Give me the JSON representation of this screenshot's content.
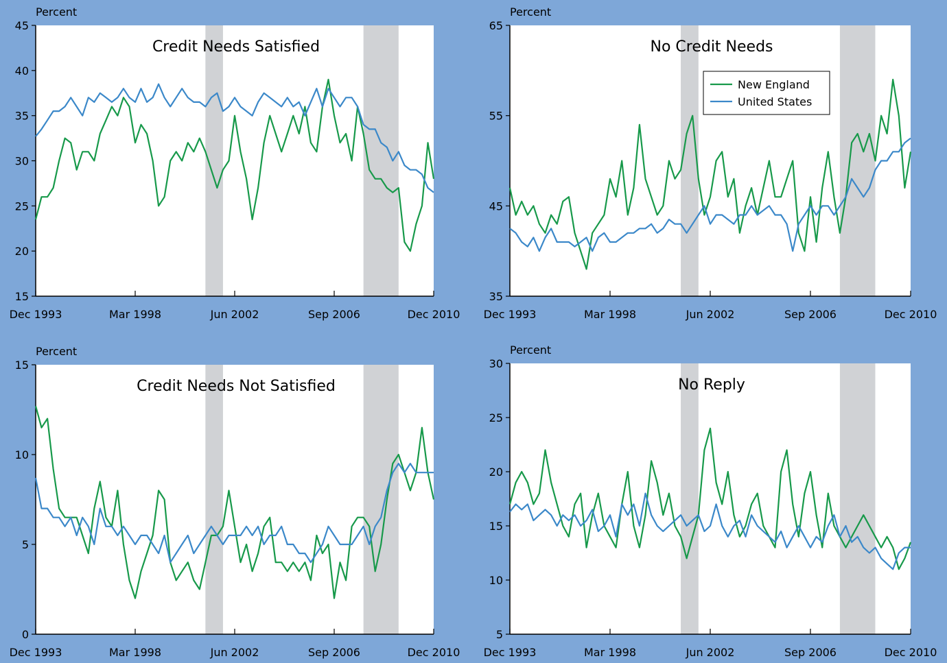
{
  "chart_data": [
    {
      "type": "line",
      "title": "Credit Needs Satisfied",
      "ylabel": "Percent",
      "x": [
        "Dec 1993",
        "Mar 1994",
        "Jun 1994",
        "Sep 1994",
        "Dec 1994",
        "Mar 1995",
        "Jun 1995",
        "Sep 1995",
        "Dec 1995",
        "Mar 1996",
        "Jun 1996",
        "Sep 1996",
        "Dec 1996",
        "Mar 1997",
        "Jun 1997",
        "Sep 1997",
        "Dec 1997",
        "Mar 1998",
        "Jun 1998",
        "Sep 1998",
        "Dec 1998",
        "Mar 1999",
        "Jun 1999",
        "Sep 1999",
        "Dec 1999",
        "Mar 2000",
        "Jun 2000",
        "Sep 2000",
        "Dec 2000",
        "Mar 2001",
        "Jun 2001",
        "Sep 2001",
        "Dec 2001",
        "Mar 2002",
        "Jun 2002",
        "Sep 2002",
        "Dec 2002",
        "Mar 2003",
        "Jun 2003",
        "Sep 2003",
        "Dec 2003",
        "Mar 2004",
        "Jun 2004",
        "Sep 2004",
        "Dec 2004",
        "Mar 2005",
        "Jun 2005",
        "Sep 2005",
        "Dec 2005",
        "Mar 2006",
        "Jun 2006",
        "Sep 2006",
        "Dec 2006",
        "Mar 2007",
        "Jun 2007",
        "Sep 2007",
        "Dec 2007",
        "Mar 2008",
        "Jun 2008",
        "Sep 2008",
        "Dec 2008",
        "Mar 2009",
        "Jun 2009",
        "Sep 2009",
        "Dec 2009",
        "Mar 2010",
        "Jun 2010",
        "Sep 2010",
        "Dec 2010"
      ],
      "xticks": [
        "Dec 1993",
        "Mar 1998",
        "Jun 2002",
        "Sep 2006",
        "Dec 2010"
      ],
      "shaded": [
        [
          "Mar 2001",
          "Dec 2001"
        ],
        [
          "Dec 2007",
          "Jun 2009"
        ]
      ],
      "ylim": [
        15,
        45
      ],
      "yticks": [
        15,
        20,
        25,
        30,
        35,
        40,
        45
      ],
      "legend": false,
      "series": [
        {
          "name": "New England",
          "color": "#17994a",
          "values": [
            23.5,
            26,
            26,
            27,
            30,
            32.5,
            32,
            29,
            31,
            31,
            30,
            33,
            34.5,
            36,
            35,
            37,
            36,
            32,
            34,
            33,
            30,
            25,
            26,
            30,
            31,
            30,
            32,
            31,
            32.5,
            31,
            29,
            27,
            29,
            30,
            35,
            31,
            28,
            23.5,
            27,
            32,
            35,
            33,
            31,
            33,
            35,
            33,
            36,
            32,
            31,
            36,
            39,
            35,
            32,
            33,
            30,
            36,
            33,
            29,
            28,
            28,
            27,
            26.5,
            27,
            21,
            20,
            23,
            25,
            32,
            28
          ]
        },
        {
          "name": "United States",
          "color": "#3b88c9",
          "values": [
            32.7,
            33.5,
            34.5,
            35.5,
            35.5,
            36,
            37,
            36,
            35,
            37,
            36.5,
            37.5,
            37,
            36.5,
            37,
            38,
            37,
            36.5,
            38,
            36.5,
            37,
            38.5,
            37,
            36,
            37,
            38,
            37,
            36.5,
            36.5,
            36,
            37,
            37.5,
            35.5,
            36,
            37,
            36,
            35.5,
            35,
            36.5,
            37.5,
            37,
            36.5,
            36,
            37,
            36,
            36.5,
            35,
            36.5,
            38,
            36,
            38,
            37,
            36,
            37,
            37,
            36,
            34,
            33.5,
            33.5,
            32,
            31.5,
            30,
            31,
            29.5,
            29,
            29,
            28.5,
            27,
            26.5
          ]
        }
      ]
    },
    {
      "type": "line",
      "title": "No Credit Needs",
      "ylabel": "Percent",
      "x": [
        "Dec 1993",
        "Mar 1994",
        "Jun 1994",
        "Sep 1994",
        "Dec 1994",
        "Mar 1995",
        "Jun 1995",
        "Sep 1995",
        "Dec 1995",
        "Mar 1996",
        "Jun 1996",
        "Sep 1996",
        "Dec 1996",
        "Mar 1997",
        "Jun 1997",
        "Sep 1997",
        "Dec 1997",
        "Mar 1998",
        "Jun 1998",
        "Sep 1998",
        "Dec 1998",
        "Mar 1999",
        "Jun 1999",
        "Sep 1999",
        "Dec 1999",
        "Mar 2000",
        "Jun 2000",
        "Sep 2000",
        "Dec 2000",
        "Mar 2001",
        "Jun 2001",
        "Sep 2001",
        "Dec 2001",
        "Mar 2002",
        "Jun 2002",
        "Sep 2002",
        "Dec 2002",
        "Mar 2003",
        "Jun 2003",
        "Sep 2003",
        "Dec 2003",
        "Mar 2004",
        "Jun 2004",
        "Sep 2004",
        "Dec 2004",
        "Mar 2005",
        "Jun 2005",
        "Sep 2005",
        "Dec 2005",
        "Mar 2006",
        "Jun 2006",
        "Sep 2006",
        "Dec 2006",
        "Mar 2007",
        "Jun 2007",
        "Sep 2007",
        "Dec 2007",
        "Mar 2008",
        "Jun 2008",
        "Sep 2008",
        "Dec 2008",
        "Mar 2009",
        "Jun 2009",
        "Sep 2009",
        "Dec 2009",
        "Mar 2010",
        "Jun 2010",
        "Sep 2010",
        "Dec 2010"
      ],
      "xticks": [
        "Dec 1993",
        "Mar 1998",
        "Jun 2002",
        "Sep 2006",
        "Dec 2010"
      ],
      "shaded": [
        [
          "Mar 2001",
          "Dec 2001"
        ],
        [
          "Dec 2007",
          "Jun 2009"
        ]
      ],
      "ylim": [
        35,
        65
      ],
      "yticks": [
        35,
        45,
        55,
        65
      ],
      "legend": true,
      "series": [
        {
          "name": "New England",
          "color": "#17994a",
          "values": [
            47,
            44,
            45.5,
            44,
            45,
            43,
            42,
            44,
            43,
            45.5,
            46,
            42,
            40,
            38,
            42,
            43,
            44,
            48,
            46,
            50,
            44,
            47,
            54,
            48,
            46,
            44,
            45,
            50,
            48,
            49,
            53,
            55,
            48,
            44,
            46,
            50,
            51,
            46,
            48,
            42,
            45,
            47,
            44,
            47,
            50,
            46,
            46,
            48,
            50,
            42,
            40,
            46,
            41,
            47,
            51,
            46,
            42,
            46,
            52,
            53,
            51,
            53,
            50,
            55,
            53,
            59,
            55,
            47,
            51
          ]
        },
        {
          "name": "United States",
          "color": "#3b88c9",
          "values": [
            42.5,
            42,
            41,
            40.5,
            41.5,
            40,
            41.5,
            42.5,
            41,
            41,
            41,
            40.5,
            41,
            41.5,
            40,
            41.5,
            42,
            41,
            41,
            41.5,
            42,
            42,
            42.5,
            42.5,
            43,
            42,
            42.5,
            43.5,
            43,
            43,
            42,
            43,
            44,
            45,
            43,
            44,
            44,
            43.5,
            43,
            44,
            44,
            45,
            44,
            44.5,
            45,
            44,
            44,
            43,
            40,
            43,
            44,
            45,
            44,
            45,
            45,
            44,
            45,
            46,
            48,
            47,
            46,
            47,
            49,
            50,
            50,
            51,
            51,
            52,
            52.5
          ]
        }
      ]
    },
    {
      "type": "line",
      "title": "Credit Needs Not Satisfied",
      "ylabel": "Percent",
      "x": [
        "Dec 1993",
        "Mar 1994",
        "Jun 1994",
        "Sep 1994",
        "Dec 1994",
        "Mar 1995",
        "Jun 1995",
        "Sep 1995",
        "Dec 1995",
        "Mar 1996",
        "Jun 1996",
        "Sep 1996",
        "Dec 1996",
        "Mar 1997",
        "Jun 1997",
        "Sep 1997",
        "Dec 1997",
        "Mar 1998",
        "Jun 1998",
        "Sep 1998",
        "Dec 1998",
        "Mar 1999",
        "Jun 1999",
        "Sep 1999",
        "Dec 1999",
        "Mar 2000",
        "Jun 2000",
        "Sep 2000",
        "Dec 2000",
        "Mar 2001",
        "Jun 2001",
        "Sep 2001",
        "Dec 2001",
        "Mar 2002",
        "Jun 2002",
        "Sep 2002",
        "Dec 2002",
        "Mar 2003",
        "Jun 2003",
        "Sep 2003",
        "Dec 2003",
        "Mar 2004",
        "Jun 2004",
        "Sep 2004",
        "Dec 2004",
        "Mar 2005",
        "Jun 2005",
        "Sep 2005",
        "Dec 2005",
        "Mar 2006",
        "Jun 2006",
        "Sep 2006",
        "Dec 2006",
        "Mar 2007",
        "Jun 2007",
        "Sep 2007",
        "Dec 2007",
        "Mar 2008",
        "Jun 2008",
        "Sep 2008",
        "Dec 2008",
        "Mar 2009",
        "Jun 2009",
        "Sep 2009",
        "Dec 2009",
        "Mar 2010",
        "Jun 2010",
        "Sep 2010",
        "Dec 2010"
      ],
      "xticks": [
        "Dec 1993",
        "Mar 1998",
        "Jun 2002",
        "Sep 2006",
        "Dec 2010"
      ],
      "shaded": [
        [
          "Mar 2001",
          "Dec 2001"
        ],
        [
          "Dec 2007",
          "Jun 2009"
        ]
      ],
      "ylim": [
        0,
        15
      ],
      "yticks": [
        0,
        5,
        10,
        15
      ],
      "legend": false,
      "series": [
        {
          "name": "New England",
          "color": "#17994a",
          "values": [
            12.7,
            11.5,
            12,
            9.2,
            7,
            6.5,
            6.5,
            6.5,
            5.5,
            4.5,
            7,
            8.5,
            6.5,
            6,
            8,
            5,
            3,
            2,
            3.5,
            4.5,
            5.5,
            8,
            7.5,
            4,
            3,
            3.5,
            4,
            3,
            2.5,
            4,
            5.5,
            5.5,
            6,
            8,
            6,
            4,
            5,
            3.5,
            4.5,
            6,
            6.5,
            4,
            4,
            3.5,
            4,
            3.5,
            4,
            3,
            5.5,
            4.5,
            5,
            2,
            4,
            3,
            6,
            6.5,
            6.5,
            6,
            3.5,
            5,
            7.5,
            9.5,
            10,
            9,
            8,
            9,
            11.5,
            9,
            7.5
          ]
        },
        {
          "name": "United States",
          "color": "#3b88c9",
          "values": [
            8.7,
            7,
            7,
            6.5,
            6.5,
            6,
            6.5,
            5.5,
            6.5,
            6,
            5,
            7,
            6,
            6,
            5.5,
            6,
            5.5,
            5,
            5.5,
            5.5,
            5,
            4.5,
            5.5,
            4,
            4.5,
            5,
            5.5,
            4.5,
            5,
            5.5,
            6,
            5.5,
            5,
            5.5,
            5.5,
            5.5,
            6,
            5.5,
            6,
            5,
            5.5,
            5.5,
            6,
            5,
            5,
            4.5,
            4.5,
            4,
            4.5,
            5,
            6,
            5.5,
            5,
            5,
            5,
            5.5,
            6,
            5,
            6,
            6.5,
            8,
            9,
            9.5,
            9,
            9.5,
            9,
            9,
            9,
            9
          ]
        }
      ]
    },
    {
      "type": "line",
      "title": "No Reply",
      "ylabel": "Percent",
      "x": [
        "Dec 1993",
        "Mar 1994",
        "Jun 1994",
        "Sep 1994",
        "Dec 1994",
        "Mar 1995",
        "Jun 1995",
        "Sep 1995",
        "Dec 1995",
        "Mar 1996",
        "Jun 1996",
        "Sep 1996",
        "Dec 1996",
        "Mar 1997",
        "Jun 1997",
        "Sep 1997",
        "Dec 1997",
        "Mar 1998",
        "Jun 1998",
        "Sep 1998",
        "Dec 1998",
        "Mar 1999",
        "Jun 1999",
        "Sep 1999",
        "Dec 1999",
        "Mar 2000",
        "Jun 2000",
        "Sep 2000",
        "Dec 2000",
        "Mar 2001",
        "Jun 2001",
        "Sep 2001",
        "Dec 2001",
        "Mar 2002",
        "Jun 2002",
        "Sep 2002",
        "Dec 2002",
        "Mar 2003",
        "Jun 2003",
        "Sep 2003",
        "Dec 2003",
        "Mar 2004",
        "Jun 2004",
        "Sep 2004",
        "Dec 2004",
        "Mar 2005",
        "Jun 2005",
        "Sep 2005",
        "Dec 2005",
        "Mar 2006",
        "Jun 2006",
        "Sep 2006",
        "Dec 2006",
        "Mar 2007",
        "Jun 2007",
        "Sep 2007",
        "Dec 2007",
        "Mar 2008",
        "Jun 2008",
        "Sep 2008",
        "Dec 2008",
        "Mar 2009",
        "Jun 2009",
        "Sep 2009",
        "Dec 2009",
        "Mar 2010",
        "Jun 2010",
        "Sep 2010",
        "Dec 2010"
      ],
      "xticks": [
        "Dec 1993",
        "Mar 1998",
        "Jun 2002",
        "Sep 2006",
        "Dec 2010"
      ],
      "shaded": [
        [
          "Mar 2001",
          "Dec 2001"
        ],
        [
          "Dec 2007",
          "Jun 2009"
        ]
      ],
      "ylim": [
        5,
        30
      ],
      "yticks": [
        5,
        10,
        15,
        20,
        25,
        30
      ],
      "legend": false,
      "series": [
        {
          "name": "New England",
          "color": "#17994a",
          "values": [
            17,
            19,
            20,
            19,
            17,
            18,
            22,
            19,
            17,
            15,
            14,
            17,
            18,
            13,
            16,
            18,
            15,
            14,
            13,
            17,
            20,
            15,
            13,
            16,
            21,
            19,
            16,
            18,
            15,
            14,
            12,
            14,
            16,
            22,
            24,
            19,
            17,
            20,
            16,
            14,
            15,
            17,
            18,
            15,
            14,
            13,
            20,
            22,
            17,
            14,
            18,
            20,
            16,
            13,
            18,
            15,
            14,
            13,
            14,
            15,
            16,
            15,
            14,
            13,
            14,
            13,
            11,
            12,
            13.5
          ]
        },
        {
          "name": "United States",
          "color": "#3b88c9",
          "values": [
            16.3,
            17,
            16.5,
            17,
            15.5,
            16,
            16.5,
            16,
            15,
            16,
            15.5,
            16,
            15,
            15.5,
            16.5,
            14.5,
            15,
            16,
            14,
            17,
            16,
            17,
            15,
            18,
            16,
            15,
            14.5,
            15,
            15.5,
            16,
            15,
            15.5,
            16,
            14.5,
            15,
            17,
            15,
            14,
            15,
            15.5,
            14,
            16,
            15,
            14.5,
            14,
            13.5,
            14.5,
            13,
            14,
            15,
            14,
            13,
            14,
            13.5,
            15,
            16,
            14,
            15,
            13.5,
            14,
            13,
            12.5,
            13,
            12,
            11.5,
            11,
            12.5,
            13,
            13
          ]
        }
      ]
    }
  ]
}
